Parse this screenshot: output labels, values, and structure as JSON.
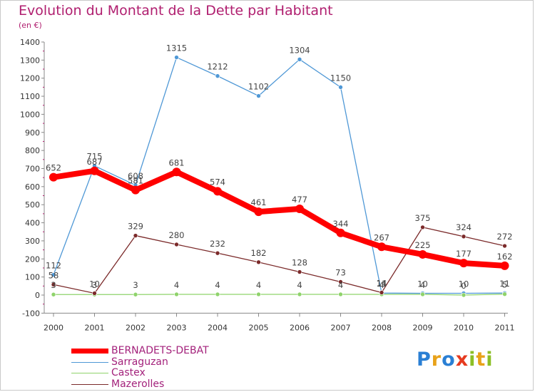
{
  "header": {
    "title": "Evolution du Montant de la Dette par Habitant",
    "subtitle": "(en €)"
  },
  "logo": {
    "text": "Proxiti",
    "letters": [
      {
        "ch": "P",
        "color": "#2a7fd4"
      },
      {
        "ch": "r",
        "color": "#e8a21a"
      },
      {
        "ch": "o",
        "color": "#2a7fd4"
      },
      {
        "ch": "x",
        "color": "#e63a1f"
      },
      {
        "ch": "i",
        "color": "#8cbf26"
      },
      {
        "ch": "t",
        "color": "#e8a21a"
      },
      {
        "ch": "i",
        "color": "#8cbf26"
      }
    ]
  },
  "chart_data": {
    "type": "line",
    "title": "Evolution du Montant de la Dette par Habitant",
    "subtitle": "(en €)",
    "xlabel": "",
    "ylabel": "",
    "x": [
      "2000",
      "2001",
      "2002",
      "2003",
      "2004",
      "2005",
      "2006",
      "2007",
      "2008",
      "2009",
      "2010",
      "2011"
    ],
    "ylim": [
      -100,
      1400
    ],
    "yticks": [
      -100,
      0,
      100,
      200,
      300,
      400,
      500,
      600,
      700,
      800,
      900,
      1000,
      1100,
      1200,
      1300,
      1400
    ],
    "grid": false,
    "legend_position": "bottom-left",
    "series": [
      {
        "name": "BERNADETS-DEBAT",
        "color": "#ff0000",
        "values": [
          652,
          687,
          581,
          681,
          574,
          461,
          477,
          344,
          267,
          225,
          177,
          162
        ]
      },
      {
        "name": "Sarraguzan",
        "color": "#4f98d6",
        "values": [
          112,
          715,
          608,
          1315,
          1212,
          1102,
          1304,
          1150,
          11,
          10,
          10,
          11
        ]
      },
      {
        "name": "Castex",
        "color": "#8fd36b",
        "values": [
          3,
          3,
          3,
          4,
          4,
          4,
          4,
          4,
          4,
          4,
          0,
          5
        ]
      },
      {
        "name": "Mazerolles",
        "color": "#7b2a2a",
        "values": [
          58,
          10,
          329,
          280,
          232,
          182,
          128,
          73,
          14,
          375,
          324,
          272
        ]
      }
    ]
  }
}
